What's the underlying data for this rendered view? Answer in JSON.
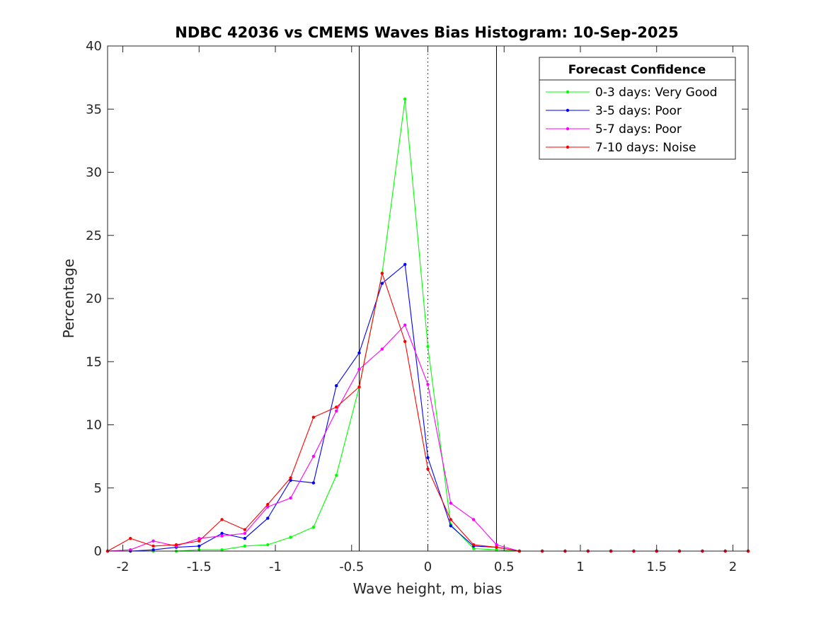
{
  "chart_data": {
    "type": "line",
    "title": "NDBC 42036 vs CMEMS Waves Bias Histogram: 10-Sep-2025",
    "xlabel": "Wave height, m, bias",
    "ylabel": "Percentage",
    "xlim": [
      -2.1,
      2.1
    ],
    "ylim": [
      0,
      40
    ],
    "xticks": [
      -2,
      -1.5,
      -1,
      -0.5,
      0,
      0.5,
      1,
      1.5,
      2
    ],
    "xtick_labels": [
      "-2",
      "-1.5",
      "-1",
      "-0.5",
      "0",
      "0.5",
      "1",
      "1.5",
      "2"
    ],
    "yticks": [
      0,
      5,
      10,
      15,
      20,
      25,
      30,
      35,
      40
    ],
    "ytick_labels": [
      "0",
      "5",
      "10",
      "15",
      "20",
      "25",
      "30",
      "35",
      "40"
    ],
    "vertical_lines": [
      {
        "x": -0.45,
        "style": "solid",
        "color": "#000000"
      },
      {
        "x": 0.45,
        "style": "solid",
        "color": "#000000"
      },
      {
        "x": 0,
        "style": "dotted",
        "color": "#000000"
      }
    ],
    "legend": {
      "title": "Forecast Confidence",
      "location": "top-right"
    },
    "x": [
      -2.1,
      -1.95,
      -1.8,
      -1.65,
      -1.5,
      -1.35,
      -1.2,
      -1.05,
      -0.9,
      -0.75,
      -0.6,
      -0.45,
      -0.3,
      -0.15,
      0,
      0.15,
      0.3,
      0.45,
      0.6,
      0.75,
      0.9,
      1.05,
      1.2,
      1.35,
      1.5,
      1.65,
      1.8,
      1.95,
      2.1
    ],
    "series": [
      {
        "name": "0-3 days: Very Good",
        "color": "#00ff00",
        "values": [
          0,
          0,
          0,
          0,
          0.1,
          0.1,
          0.4,
          0.5,
          1.1,
          1.9,
          6.0,
          13.0,
          22.0,
          35.8,
          16.2,
          2.1,
          0.2,
          0.1,
          0,
          0,
          0,
          0,
          0,
          0,
          0,
          0,
          0,
          0,
          0
        ]
      },
      {
        "name": "3-5 days: Poor",
        "color": "#0000ff",
        "values": [
          0,
          0,
          0.1,
          0.3,
          0.4,
          1.4,
          1.0,
          2.6,
          5.6,
          5.4,
          13.1,
          15.7,
          21.2,
          22.7,
          7.4,
          2.0,
          0.4,
          0.3,
          0,
          0,
          0,
          0,
          0,
          0,
          0,
          0,
          0,
          0,
          0
        ]
      },
      {
        "name": "5-7 days: Poor",
        "color": "#ff00ff",
        "values": [
          0,
          0.1,
          0.8,
          0.4,
          1.0,
          1.2,
          1.4,
          3.5,
          4.2,
          7.5,
          11.1,
          14.4,
          16.0,
          17.9,
          13.2,
          3.8,
          2.5,
          0.5,
          0,
          0,
          0,
          0,
          0,
          0,
          0,
          0,
          0,
          0,
          0
        ]
      },
      {
        "name": "7-10 days: Noise",
        "color": "#ff0000",
        "values": [
          0,
          1.0,
          0.4,
          0.5,
          0.8,
          2.5,
          1.7,
          3.7,
          5.8,
          10.6,
          11.4,
          13.0,
          22.0,
          16.6,
          6.5,
          2.5,
          0.5,
          0.3,
          0,
          0,
          0,
          0,
          0,
          0,
          0,
          0,
          0,
          0,
          0
        ]
      }
    ]
  }
}
